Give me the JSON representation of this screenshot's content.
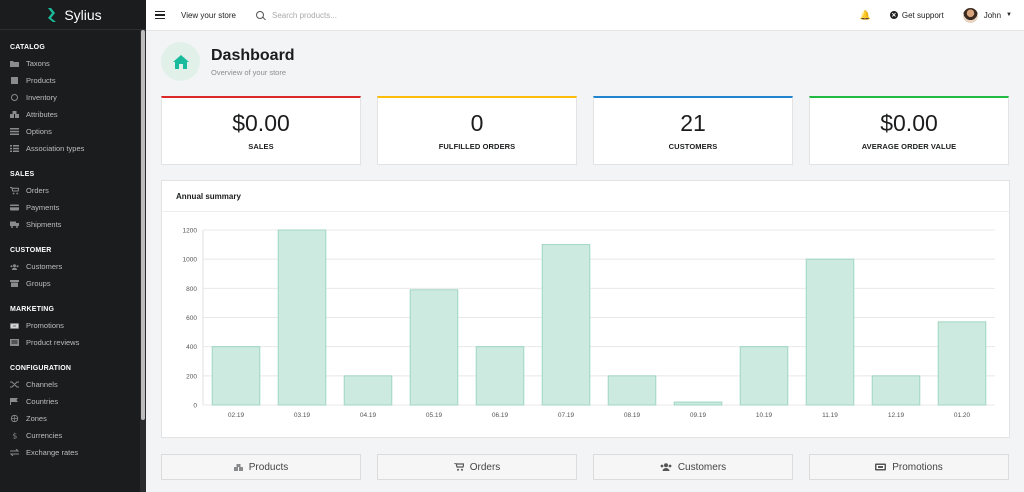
{
  "brand": {
    "name": "Sylius"
  },
  "sidebar": {
    "sections": [
      {
        "title": "Catalog",
        "items": [
          {
            "label": "Taxons",
            "icon": "folder-icon"
          },
          {
            "label": "Products",
            "icon": "cube-icon"
          },
          {
            "label": "Inventory",
            "icon": "history-icon"
          },
          {
            "label": "Attributes",
            "icon": "cubes-icon"
          },
          {
            "label": "Options",
            "icon": "options-icon"
          },
          {
            "label": "Association types",
            "icon": "list-icon"
          }
        ]
      },
      {
        "title": "Sales",
        "items": [
          {
            "label": "Orders",
            "icon": "cart-icon"
          },
          {
            "label": "Payments",
            "icon": "payment-icon"
          },
          {
            "label": "Shipments",
            "icon": "truck-icon"
          }
        ]
      },
      {
        "title": "Customer",
        "items": [
          {
            "label": "Customers",
            "icon": "users-icon"
          },
          {
            "label": "Groups",
            "icon": "archive-icon"
          }
        ]
      },
      {
        "title": "Marketing",
        "items": [
          {
            "label": "Promotions",
            "icon": "promotion-icon"
          },
          {
            "label": "Product reviews",
            "icon": "newspaper-icon"
          }
        ]
      },
      {
        "title": "Configuration",
        "items": [
          {
            "label": "Channels",
            "icon": "shuffle-icon"
          },
          {
            "label": "Countries",
            "icon": "flag-icon"
          },
          {
            "label": "Zones",
            "icon": "globe-icon"
          },
          {
            "label": "Currencies",
            "icon": "dollar-icon"
          },
          {
            "label": "Exchange rates",
            "icon": "exchange-icon"
          }
        ]
      }
    ]
  },
  "topbar": {
    "view_store": "View your store",
    "search_placeholder": "Search products...",
    "support": "Get support",
    "user_name": "John"
  },
  "dashboard": {
    "title": "Dashboard",
    "subtitle": "Overview of your store"
  },
  "stats": [
    {
      "value": "$0.00",
      "label": "SALES",
      "color": "#db2828"
    },
    {
      "value": "0",
      "label": "FULFILLED ORDERS",
      "color": "#fbbd08"
    },
    {
      "value": "21",
      "label": "CUSTOMERS",
      "color": "#2185d0"
    },
    {
      "value": "$0.00",
      "label": "AVERAGE ORDER VALUE",
      "color": "#21ba45"
    }
  ],
  "summary": {
    "title": "Annual summary"
  },
  "chart_data": {
    "type": "bar",
    "categories": [
      "02.19",
      "03.19",
      "04.19",
      "05.19",
      "06.19",
      "07.19",
      "08.19",
      "09.19",
      "10.19",
      "11.19",
      "12.19",
      "01.20"
    ],
    "values": [
      400,
      1200,
      200,
      790,
      400,
      1100,
      200,
      20,
      400,
      1000,
      200,
      570
    ],
    "yticks": [
      0,
      200,
      400,
      600,
      800,
      1000,
      1200
    ],
    "ylim": [
      0,
      1200
    ],
    "bar_color": "#cdeae0",
    "bar_border": "#9fd6c1"
  },
  "bottom_buttons": [
    {
      "label": "Products",
      "icon": "cubes-icon"
    },
    {
      "label": "Orders",
      "icon": "cart-icon"
    },
    {
      "label": "Customers",
      "icon": "users-icon"
    },
    {
      "label": "Promotions",
      "icon": "promotion-icon"
    }
  ]
}
